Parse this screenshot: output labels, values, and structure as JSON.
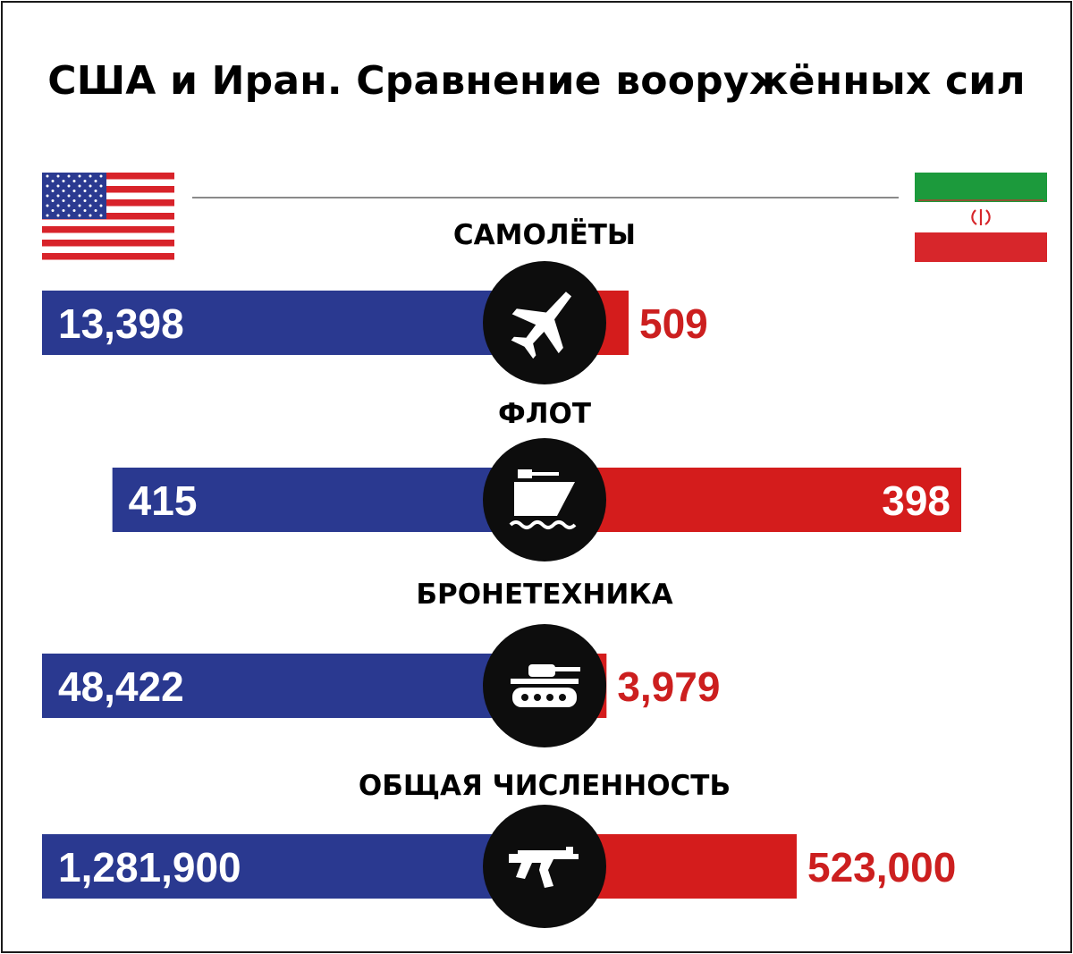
{
  "header": {
    "title": "США и Иран. Сравнение вооружённых сил"
  },
  "flags": {
    "left": "flag-usa",
    "right": "flag-iran"
  },
  "colors": {
    "usa_bar": "#2a3990",
    "iran_bar": "#d41c1c",
    "iran_value_text": "#cc1f1f",
    "icon_circle": "#0d0d0d"
  },
  "chart_data": {
    "type": "bar",
    "orientation": "horizontal-diverging",
    "categories": [
      "САМОЛЁТЫ",
      "ФЛОТ",
      "БРОНЕТЕХНИКА",
      "ОБЩАЯ ЧИСЛЕННОСТЬ"
    ],
    "category_icons": [
      "plane-icon",
      "warship-icon",
      "tank-icon",
      "rifle-icon"
    ],
    "series": [
      {
        "values": [
          13398,
          415,
          48422,
          1281900
        ],
        "labels": [
          "13,398",
          "415",
          "48,422",
          "1,281,900"
        ]
      },
      {
        "values": [
          509,
          398,
          3979,
          523000
        ],
        "labels": [
          "509",
          "398",
          "3,979",
          "523,000"
        ]
      }
    ],
    "bar_fraction_usa": [
      1.0,
      0.86,
      1.0,
      1.0
    ],
    "bar_fraction_iran": [
      0.09,
      1.0,
      0.02,
      0.55
    ]
  }
}
